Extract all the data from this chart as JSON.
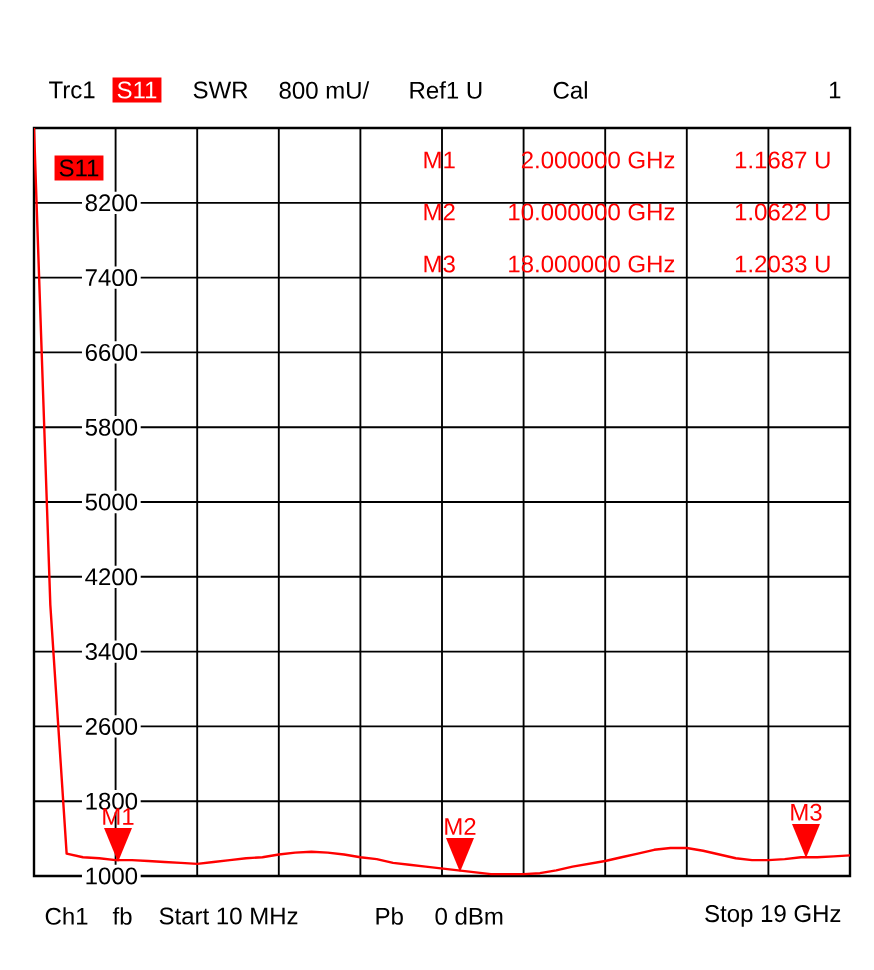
{
  "chart_data": {
    "type": "line",
    "annotations": [
      "Trc1",
      "S11",
      "SWR",
      "800 mU/",
      "Ref1 U",
      "Cal",
      "1",
      "S11",
      "M1",
      "2.000000 GHz",
      "1.1687 U",
      "M2",
      "10.000000 GHz",
      "1.0622 U",
      "M3",
      "18.000000 GHz",
      "1.2033 U",
      "Ch1",
      "fb",
      "Start 10 MHz",
      "Pb",
      "0 dBm",
      "Stop 19 GHz",
      "M1",
      "M2",
      "M3"
    ],
    "categories": [
      null,
      null,
      null,
      null,
      null,
      null,
      null,
      null,
      null,
      null,
      null,
      null,
      null,
      null,
      null,
      null,
      null,
      null,
      null,
      null,
      null,
      null,
      null,
      null,
      null,
      null,
      null,
      null,
      null,
      null,
      null,
      null,
      null,
      null,
      null,
      null,
      null,
      null,
      null,
      null,
      null,
      null,
      null,
      null,
      null,
      null,
      null,
      null,
      null,
      null,
      null
    ],
    "series": [
      {
        "color": "#ff0000",
        "values": [
          9000,
          3900,
          1240,
          1200,
          1190,
          1170,
          1170,
          1160,
          1150,
          1140,
          1130,
          1150,
          1170,
          1190,
          1200,
          1230,
          1250,
          1260,
          1250,
          1230,
          1200,
          1180,
          1140,
          1120,
          1100,
          1080,
          1060,
          1040,
          1020,
          1020,
          1020,
          1030,
          1060,
          1100,
          1130,
          1160,
          1200,
          1240,
          1280,
          1300,
          1300,
          1270,
          1230,
          1190,
          1170,
          1170,
          1180,
          1200,
          1200,
          1210,
          1220
        ]
      }
    ],
    "ylim": [
      1000,
      9000
    ],
    "yticks": [
      1000,
      1800,
      2600,
      3400,
      4200,
      5000,
      5800,
      6600,
      7400,
      8200
    ],
    "tick_labels": "y",
    "grid": true
  }
}
